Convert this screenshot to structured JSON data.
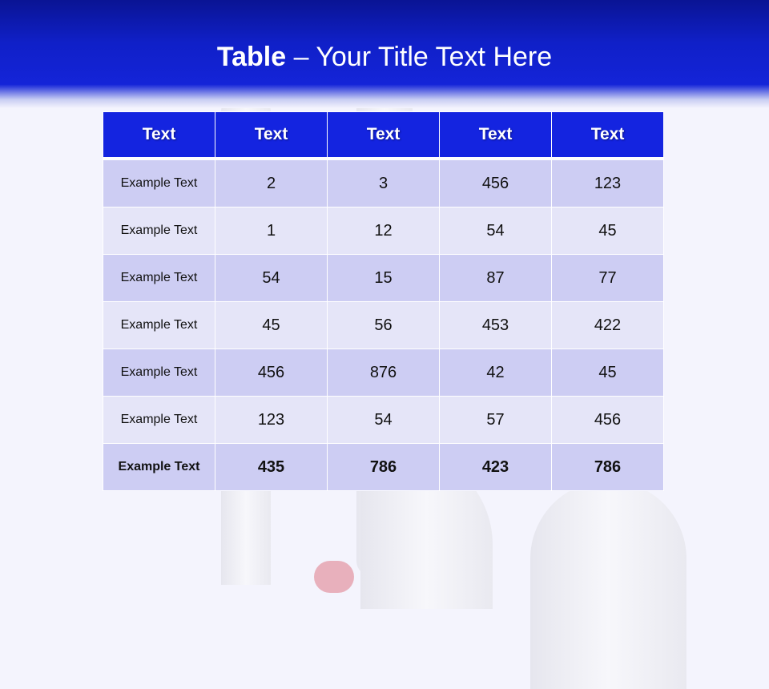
{
  "slide": {
    "title_bold": "Table",
    "title_rest": " – Your Title Text Here",
    "colors": {
      "banner": "#1424d8",
      "header": "#1424e0",
      "row_odd": "#cdcdf3",
      "row_even": "#e5e5f8"
    }
  },
  "table": {
    "headers": [
      "Text",
      "Text",
      "Text",
      "Text",
      "Text"
    ],
    "rows": [
      [
        "Example Text",
        "2",
        "3",
        "456",
        "123"
      ],
      [
        "Example Text",
        "1",
        "12",
        "54",
        "45"
      ],
      [
        "Example Text",
        "54",
        "15",
        "87",
        "77"
      ],
      [
        "Example Text",
        "45",
        "56",
        "453",
        "422"
      ],
      [
        "Example Text",
        "456",
        "876",
        "42",
        "45"
      ],
      [
        "Example Text",
        "123",
        "54",
        "57",
        "456"
      ],
      [
        "Example Text",
        "435",
        "786",
        "423",
        "786"
      ]
    ]
  }
}
